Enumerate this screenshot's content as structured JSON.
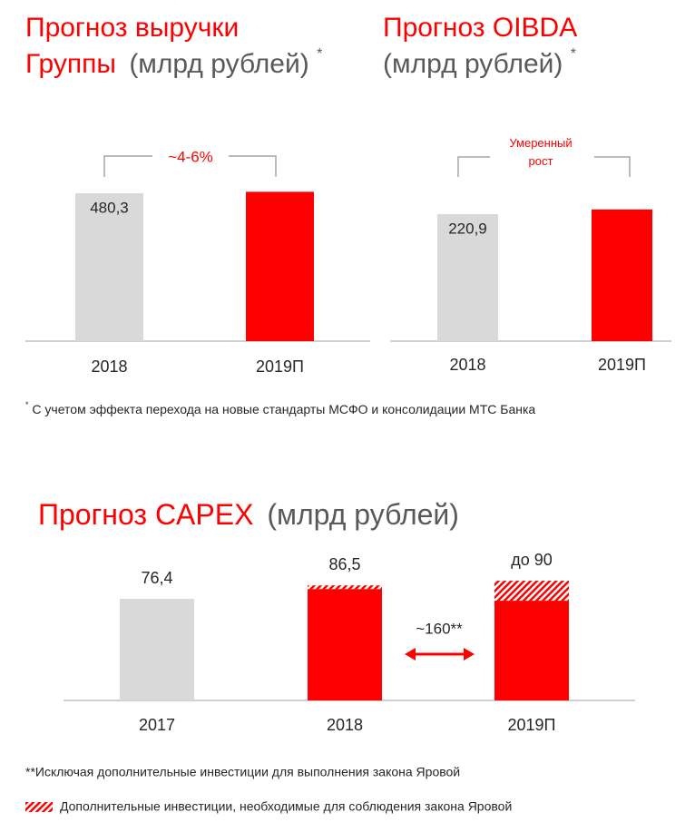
{
  "chart_data": [
    {
      "type": "bar",
      "title": [
        "Прогноз выручки",
        "Группы"
      ],
      "unit": "(млрд рублей)",
      "title_mark": "*",
      "categories": [
        "2018",
        "2019П"
      ],
      "values": [
        480.3,
        485
      ],
      "value_labels": [
        "480,3",
        null
      ],
      "colors": [
        "#d9d9d9",
        "#ff0000"
      ],
      "annotation": "~4-6%"
    },
    {
      "type": "bar",
      "title": [
        "Прогноз OIBDA"
      ],
      "unit": "(млрд рублей)",
      "title_mark": "*",
      "categories": [
        "2018",
        "2019П"
      ],
      "values": [
        220.9,
        229
      ],
      "value_labels": [
        "220,9",
        null
      ],
      "colors": [
        "#d9d9d9",
        "#ff0000"
      ],
      "annotation": "Умеренный рост"
    },
    {
      "type": "stacked_bar",
      "title": "Прогноз CAPEX",
      "unit": "(млрд рублей)",
      "categories": [
        "2017",
        "2018",
        "2019П"
      ],
      "series": [
        {
          "colors": [
            "#d9d9d9",
            "#ff0000",
            "#ff0000"
          ],
          "values": [
            76.4,
            83.8,
            75
          ]
        },
        {
          "name": "Дополнительные инвестиции, необходимые для соблюдения закона Яровой",
          "color": "#ff0000",
          "pattern": "hatch",
          "values": [
            null,
            2.7,
            15
          ]
        }
      ],
      "total_labels": [
        "76,4",
        "86,5",
        "до 90"
      ],
      "annotation": "~160**",
      "footnote": "**Исключая дополнительные инвестиции для выполнения закона Яровой"
    }
  ],
  "footnote": {
    "mark": "*",
    "text": "С учетом эффекта перехода на новые стандарты МСФО и консолидации МТС Банка"
  }
}
